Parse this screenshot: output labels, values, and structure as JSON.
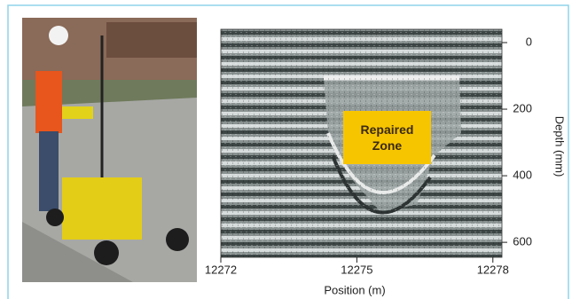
{
  "chart_data": {
    "type": "radargram",
    "xlabel": "Position (m)",
    "ylabel": "Depth (mm)",
    "annotation": "Repaired Zone",
    "xlim": [
      12272,
      12278.2
    ],
    "xticks": [
      12272,
      12275,
      12278
    ],
    "ylim": [
      645,
      -40
    ],
    "yticks": [
      0,
      200,
      400,
      600
    ],
    "annotation_color": "#f7c500"
  }
}
